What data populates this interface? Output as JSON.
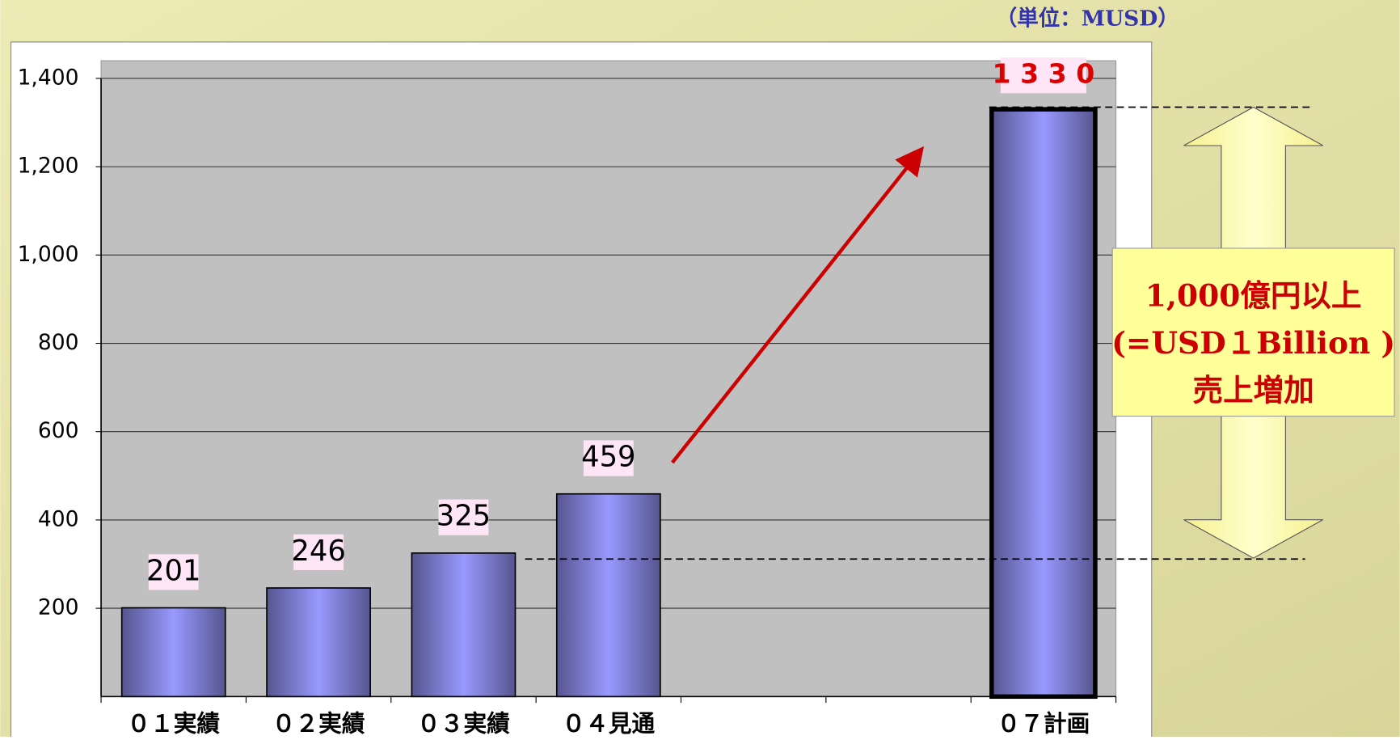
{
  "chart_data": {
    "type": "bar",
    "unit_label": "（単位：MUSD）",
    "categories": [
      "０１実績",
      "０２実績",
      "０３実績",
      "０４見通",
      null,
      null,
      "０７計画"
    ],
    "values": [
      201,
      246,
      325,
      459,
      null,
      null,
      1330
    ],
    "value_labels": [
      "201",
      "246",
      "325",
      "459",
      null,
      null,
      "1 3 3 0"
    ],
    "color": "#9999ff",
    "ylim": [
      0,
      1440
    ],
    "yticks": [
      200,
      400,
      600,
      800,
      {
        "value": 1000,
        "label": "1,000"
      },
      {
        "value": 1200,
        "label": "1,200"
      },
      {
        "value": 1400,
        "label": "1,400"
      }
    ],
    "grid": true,
    "annotation": [
      "1,000億円以上",
      "(=USD１Billion )",
      "売上増加"
    ]
  }
}
